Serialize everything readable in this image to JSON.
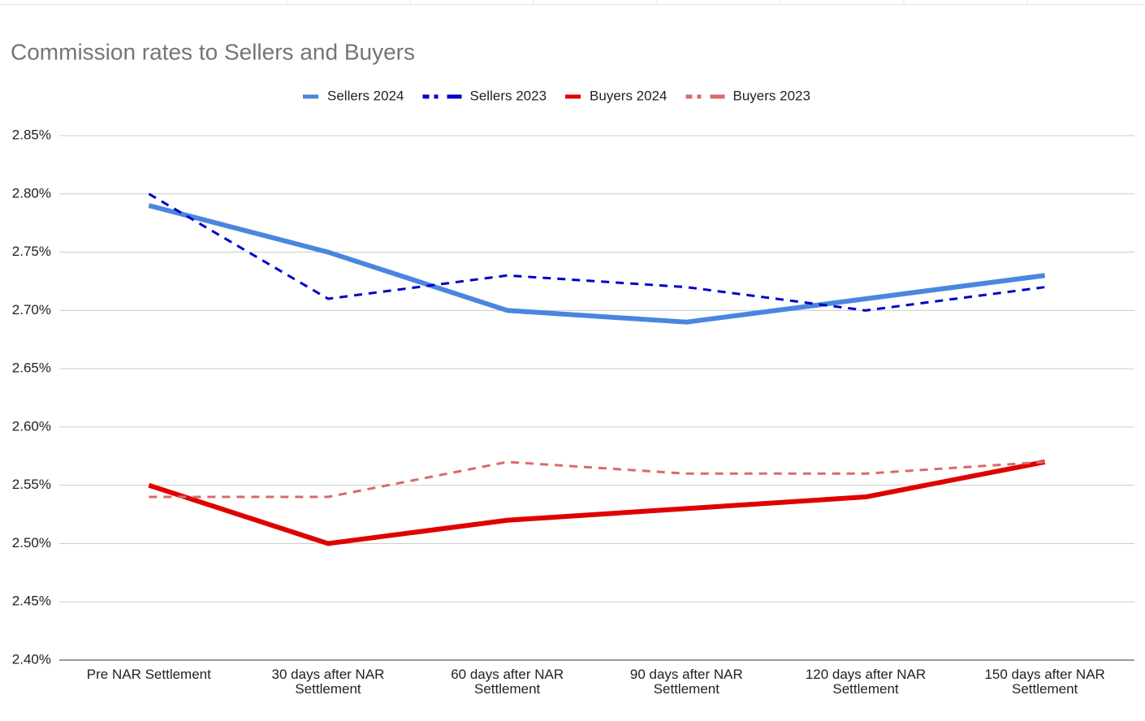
{
  "chart_data": {
    "type": "line",
    "title": "Commission rates to Sellers and Buyers",
    "categories": [
      "Pre NAR Settlement",
      "30 days after NAR Settlement",
      "60 days after NAR Settlement",
      "90 days after NAR Settlement",
      "120 days after NAR Settlement",
      "150 days after NAR Settlement"
    ],
    "series": [
      {
        "name": "Sellers 2024",
        "color": "#4a86e0",
        "dashed": false,
        "values": [
          2.79,
          2.75,
          2.7,
          2.69,
          2.71,
          2.73
        ]
      },
      {
        "name": "Sellers 2023",
        "color": "#0000c8",
        "dashed": true,
        "values": [
          2.8,
          2.71,
          2.73,
          2.72,
          2.7,
          2.72
        ]
      },
      {
        "name": "Buyers 2024",
        "color": "#e00000",
        "dashed": false,
        "values": [
          2.55,
          2.5,
          2.52,
          2.53,
          2.54,
          2.57
        ]
      },
      {
        "name": "Buyers 2023",
        "color": "#d96a6a",
        "dashed": true,
        "values": [
          2.54,
          2.54,
          2.57,
          2.56,
          2.56,
          2.57
        ]
      }
    ],
    "ylim": [
      2.4,
      2.85
    ],
    "yticks": [
      {
        "value": 2.4,
        "label": "2.40%"
      },
      {
        "value": 2.45,
        "label": "2.45%"
      },
      {
        "value": 2.5,
        "label": "2.50%"
      },
      {
        "value": 2.55,
        "label": "2.55%"
      },
      {
        "value": 2.6,
        "label": "2.60%"
      },
      {
        "value": 2.65,
        "label": "2.65%"
      },
      {
        "value": 2.7,
        "label": "2.70%"
      },
      {
        "value": 2.75,
        "label": "2.75%"
      },
      {
        "value": 2.8,
        "label": "2.80%"
      },
      {
        "value": 2.85,
        "label": "2.85%"
      }
    ],
    "grid": true,
    "legend": "top"
  }
}
